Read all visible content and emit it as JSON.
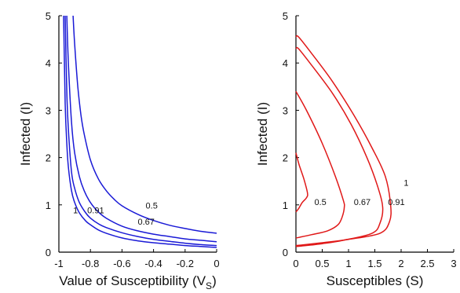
{
  "chart_data": [
    {
      "type": "line",
      "title": "",
      "xlabel": "Value of Susceptibility (V",
      "xlabel_sub": "S",
      "xlabel_close": ")",
      "ylabel": "Infected (I)",
      "xlim": [
        -1,
        0
      ],
      "ylim": [
        0,
        5
      ],
      "xticks": [
        "-1",
        "-0.8",
        "-0.6",
        "-0.4",
        "-0.2",
        "0"
      ],
      "yticks": [
        "0",
        "1",
        "2",
        "3",
        "4",
        "5"
      ],
      "color": "#1a1ad6",
      "grid": false,
      "series": [
        {
          "label": "1",
          "x": [
            -0.97,
            -0.96,
            -0.95,
            -0.94,
            -0.92,
            -0.9,
            -0.87,
            -0.83,
            -0.8,
            -0.75,
            -0.7,
            -0.6,
            -0.5,
            -0.4,
            -0.3,
            -0.2,
            -0.1,
            0
          ],
          "y": [
            5,
            3.15,
            2.3,
            1.8,
            1.3,
            1.05,
            0.83,
            0.66,
            0.58,
            0.47,
            0.4,
            0.3,
            0.24,
            0.2,
            0.17,
            0.14,
            0.12,
            0.1
          ]
        },
        {
          "label": "0.91",
          "x": [
            -0.96,
            -0.95,
            -0.94,
            -0.92,
            -0.9,
            -0.87,
            -0.83,
            -0.8,
            -0.75,
            -0.7,
            -0.6,
            -0.5,
            -0.4,
            -0.3,
            -0.2,
            -0.1,
            0
          ],
          "y": [
            5,
            3.4,
            2.6,
            1.7,
            1.35,
            1.05,
            0.83,
            0.72,
            0.6,
            0.52,
            0.41,
            0.33,
            0.27,
            0.23,
            0.19,
            0.16,
            0.14
          ]
        },
        {
          "label": "0.67",
          "x": [
            -0.95,
            -0.94,
            -0.92,
            -0.9,
            -0.87,
            -0.84,
            -0.8,
            -0.75,
            -0.7,
            -0.6,
            -0.5,
            -0.4,
            -0.3,
            -0.2,
            -0.1,
            0
          ],
          "y": [
            5,
            4.0,
            2.75,
            2.1,
            1.6,
            1.3,
            1.05,
            0.85,
            0.72,
            0.55,
            0.45,
            0.38,
            0.33,
            0.28,
            0.25,
            0.22
          ]
        },
        {
          "label": "0.5",
          "x": [
            -0.91,
            -0.9,
            -0.88,
            -0.86,
            -0.84,
            -0.8,
            -0.75,
            -0.7,
            -0.65,
            -0.6,
            -0.5,
            -0.4,
            -0.3,
            -0.2,
            -0.1,
            0
          ],
          "y": [
            5,
            4.4,
            3.5,
            2.9,
            2.5,
            1.95,
            1.55,
            1.3,
            1.12,
            0.98,
            0.8,
            0.67,
            0.57,
            0.5,
            0.44,
            0.4
          ]
        }
      ],
      "annotations": [
        {
          "text": "1",
          "x": -0.91,
          "y": 0.82
        },
        {
          "text": "0.91",
          "x": -0.82,
          "y": 0.82
        },
        {
          "text": "0.67",
          "x": -0.5,
          "y": 0.58
        },
        {
          "text": "0.5",
          "x": -0.45,
          "y": 0.92
        }
      ]
    },
    {
      "type": "line",
      "title": "",
      "xlabel": "Susceptibles (S)",
      "xlabel_sub": "",
      "xlabel_close": "",
      "ylabel": "Infected (I)",
      "xlim": [
        0,
        3
      ],
      "ylim": [
        0,
        5
      ],
      "xticks": [
        "0",
        "0.5",
        "1",
        "1.5",
        "2",
        "2.5",
        "3"
      ],
      "yticks": [
        "0",
        "1",
        "2",
        "3",
        "4",
        "5"
      ],
      "color": "#e01818",
      "grid": false,
      "series": [
        {
          "label": "1",
          "x": [
            0,
            0.05,
            0.3,
            0.7,
            1.1,
            1.45,
            1.7,
            1.8,
            1.78,
            1.6,
            1.0,
            0.5,
            0.1,
            0
          ],
          "y": [
            4.55,
            4.55,
            4.2,
            3.6,
            2.9,
            2.2,
            1.6,
            1.0,
            0.65,
            0.4,
            0.27,
            0.2,
            0.15,
            0.14
          ]
        },
        {
          "label": "0.91",
          "x": [
            0,
            0.05,
            0.3,
            0.7,
            1.05,
            1.35,
            1.55,
            1.65,
            1.6,
            1.45,
            0.9,
            0.5,
            0.1,
            0
          ],
          "y": [
            4.3,
            4.3,
            3.95,
            3.35,
            2.7,
            2.0,
            1.4,
            0.95,
            0.62,
            0.4,
            0.25,
            0.18,
            0.13,
            0.12
          ]
        },
        {
          "label": "0.67",
          "x": [
            0,
            0.2,
            0.5,
            0.75,
            0.9,
            0.92,
            0.88,
            0.8,
            0.6,
            0.3,
            0.05,
            0
          ],
          "y": [
            3.4,
            3.0,
            2.3,
            1.6,
            1.1,
            0.95,
            0.75,
            0.58,
            0.45,
            0.37,
            0.31,
            0.3
          ]
        },
        {
          "label": "0.5",
          "x": [
            0,
            0.06,
            0.15,
            0.22,
            0.2,
            0.12,
            0.05,
            0
          ],
          "y": [
            2.1,
            1.85,
            1.55,
            1.25,
            1.15,
            1.05,
            0.92,
            0.85
          ]
        }
      ],
      "annotations": [
        {
          "text": "1",
          "x": 2.05,
          "y": 1.4
        },
        {
          "text": "0.91",
          "x": 1.75,
          "y": 1.0
        },
        {
          "text": "0.67",
          "x": 1.1,
          "y": 1.0
        },
        {
          "text": "0.5",
          "x": 0.35,
          "y": 1.0
        }
      ]
    }
  ]
}
